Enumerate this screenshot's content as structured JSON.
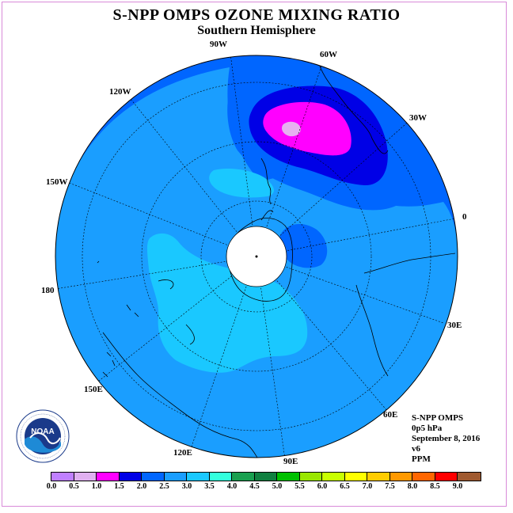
{
  "header": {
    "title": "S-NPP OMPS OZONE MIXING RATIO",
    "subtitle": "Southern Hemisphere"
  },
  "map": {
    "projection": "south polar stereographic",
    "longitude_labels": [
      "90W",
      "60W",
      "30W",
      "0",
      "30E",
      "60E",
      "90E",
      "120E",
      "150E",
      "180",
      "150W",
      "120W"
    ],
    "contour_colors": {
      "2.0-2.5": "#0066ff",
      "2.5-3.0": "#1a9eff",
      "3.0-3.5": "#1ac8ff",
      "1.5-2.0": "#0000e6",
      "1.0-1.5": "#ff00ff",
      "0.5-1.0": "#e6b0f0",
      "no_data": "#ffffff"
    }
  },
  "logo": {
    "text": "NOAA",
    "ring_text": "NATIONAL OCEANIC AND ATMOSPHERIC ADMINISTRATION · U.S. DEPARTMENT OF COMMERCE"
  },
  "info": {
    "instrument": "S-NPP OMPS",
    "level": "0p5 hPa",
    "date": "September 8, 2016",
    "version": "v6",
    "units": "PPM"
  },
  "colorbar": {
    "colors": [
      "#c080ff",
      "#e0b0f0",
      "#ff00ff",
      "#0000e6",
      "#0066ff",
      "#1a9eff",
      "#1ac8ff",
      "#33ffdd",
      "#1aa050",
      "#108040",
      "#00c000",
      "#99e600",
      "#c8ff00",
      "#ffff00",
      "#ffcc00",
      "#ff9900",
      "#ff6600",
      "#ff0000",
      "#a05a30"
    ],
    "labels": [
      "0.0",
      "0.5",
      "1.0",
      "1.5",
      "2.0",
      "2.5",
      "3.0",
      "3.5",
      "4.0",
      "4.5",
      "5.0",
      "5.5",
      "6.0",
      "6.5",
      "7.0",
      "7.5",
      "8.0",
      "8.5",
      "9.0"
    ]
  }
}
